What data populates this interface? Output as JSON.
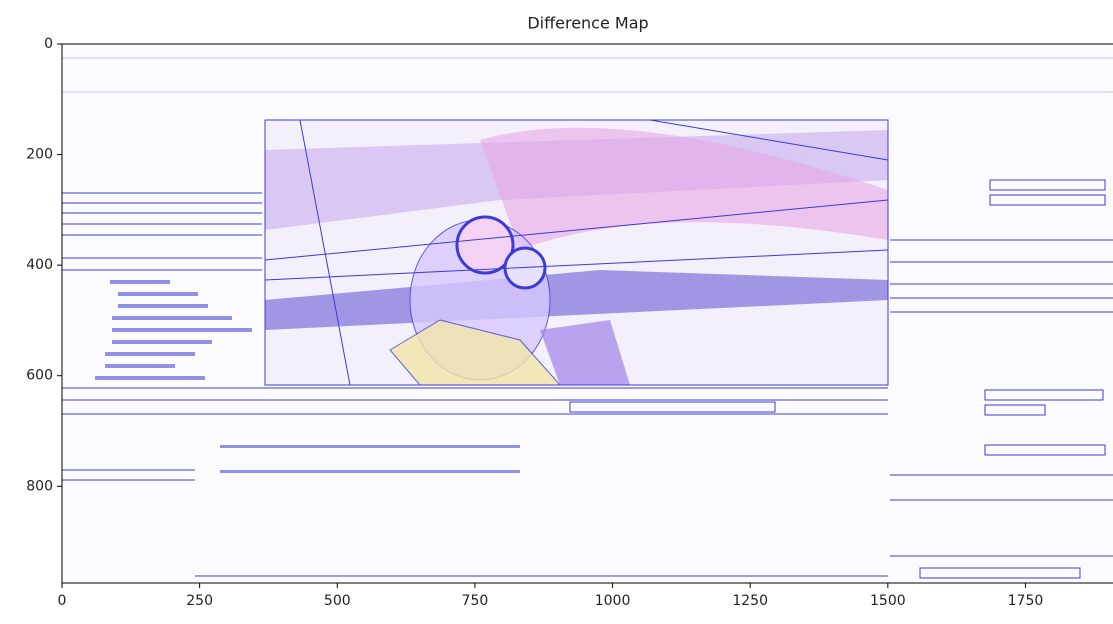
{
  "chart_data": {
    "type": "image",
    "title": "Difference Map",
    "xlim": [
      0,
      1909
    ],
    "ylim": [
      975,
      0
    ],
    "xticks": [
      0,
      250,
      500,
      750,
      1000,
      1250,
      1500,
      1750
    ],
    "yticks": [
      0,
      200,
      400,
      600,
      800
    ]
  }
}
